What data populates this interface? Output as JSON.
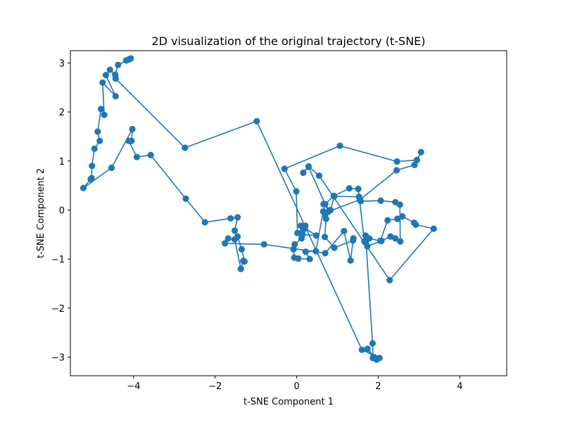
{
  "chart_data": {
    "type": "line",
    "title": "2D visualization of the original trajectory (t-SNE)",
    "xlabel": "t-SNE Component 1",
    "ylabel": "t-SNE Component 2",
    "xlim": [
      -5.55,
      5.15
    ],
    "ylim": [
      -3.38,
      3.25
    ],
    "xticks": [
      -4,
      -2,
      0,
      2,
      4
    ],
    "yticks": [
      -3,
      -2,
      -1,
      0,
      1,
      2,
      3
    ],
    "xtick_labels": [
      "−4",
      "−2",
      "0",
      "2",
      "4"
    ],
    "ytick_labels": [
      "−3",
      "−2",
      "−1",
      "0",
      "1",
      "2",
      "3"
    ],
    "grid": false,
    "color": "#1f77b4",
    "marker": "circle",
    "series": [
      {
        "x": [
          -4.07,
          -4.12,
          -4.18,
          -4.38,
          -4.45,
          -4.58,
          -4.68,
          -4.44,
          -4.76,
          -4.72,
          -4.8,
          -4.88,
          -4.83,
          -4.96,
          -5.02,
          -5.03,
          -5.05,
          -5.23,
          -4.54,
          -4.03,
          -4.05,
          -4.12,
          -3.92,
          -3.58,
          -2.72,
          -2.25,
          -1.62,
          -1.45,
          -1.52,
          -1.45,
          -1.35,
          -1.28,
          -1.31,
          -1.37,
          -1.52,
          -1.68,
          -1.76,
          -0.8,
          0.7,
          1.16,
          1.32,
          1.39,
          1.39,
          1.38,
          0.92,
          0.69,
          0.72,
          0.7,
          0.66,
          0.83,
          0.92,
          1.53,
          1.57,
          2.06,
          2.42,
          2.53,
          2.54,
          2.42,
          2.3,
          2.08,
          1.73,
          1.69,
          1.66,
          1.51,
          1.29,
          0.91,
          0.7,
          0.65,
          0.47,
          0.22,
          0.32,
          0.04,
          -0.06,
          -0.08,
          -0.05,
          0.12,
          0.15,
          0.1,
          0.21,
          0.2,
          0.48,
          0.14,
          0.02,
          -0.01,
          -0.3,
          1.06,
          2.46,
          2.95,
          3.05,
          2.89,
          2.45,
          1.55,
          0.78,
          0.29,
          0.16,
          0.29,
          0.55,
          2.28,
          3.36,
          2.92,
          2.88,
          2.59,
          2.47,
          2.23,
          2.05,
          1.78,
          1.69,
          1.86,
          1.87,
          1.74,
          1.9,
          1.96,
          1.98,
          2.03,
          1.6,
          -0.98,
          -2.74,
          -4.44
        ],
        "y": [
          3.09,
          3.07,
          3.05,
          2.96,
          2.76,
          2.86,
          2.75,
          2.32,
          2.6,
          1.94,
          2.06,
          1.6,
          1.41,
          1.25,
          0.9,
          0.65,
          0.63,
          0.45,
          0.86,
          1.65,
          1.41,
          1.41,
          1.08,
          1.12,
          0.23,
          -0.25,
          -0.17,
          -0.15,
          -0.42,
          -0.54,
          -0.8,
          -1.05,
          -1.04,
          -1.2,
          -0.6,
          -0.58,
          -0.68,
          -0.7,
          -0.88,
          -0.43,
          -1.03,
          -0.58,
          -0.58,
          -0.62,
          -0.77,
          -0.55,
          -0.18,
          -0.1,
          0.12,
          0.0,
          0.28,
          0.27,
          0.18,
          0.19,
          0.16,
          0.11,
          -0.64,
          -0.58,
          -0.54,
          -0.63,
          -0.74,
          -0.66,
          -0.64,
          0.43,
          0.44,
          0.29,
          0.12,
          -0.03,
          -0.84,
          -0.85,
          -1.0,
          -0.99,
          -0.97,
          -0.8,
          -0.7,
          -0.58,
          -0.42,
          -0.32,
          -0.32,
          -0.37,
          -0.52,
          -0.5,
          -0.47,
          0.38,
          0.84,
          1.31,
          0.99,
          1.02,
          1.18,
          0.92,
          0.81,
          0.21,
          -0.03,
          0.88,
          0.76,
          0.89,
          0.7,
          -1.43,
          -0.38,
          -0.3,
          -0.26,
          -0.13,
          -0.18,
          -0.21,
          -0.63,
          -0.58,
          -0.52,
          -2.72,
          -3.02,
          -2.83,
          -3.0,
          -3.05,
          -3.03,
          -3.02,
          -2.85,
          1.81,
          1.27,
          2.68
        ]
      }
    ]
  }
}
